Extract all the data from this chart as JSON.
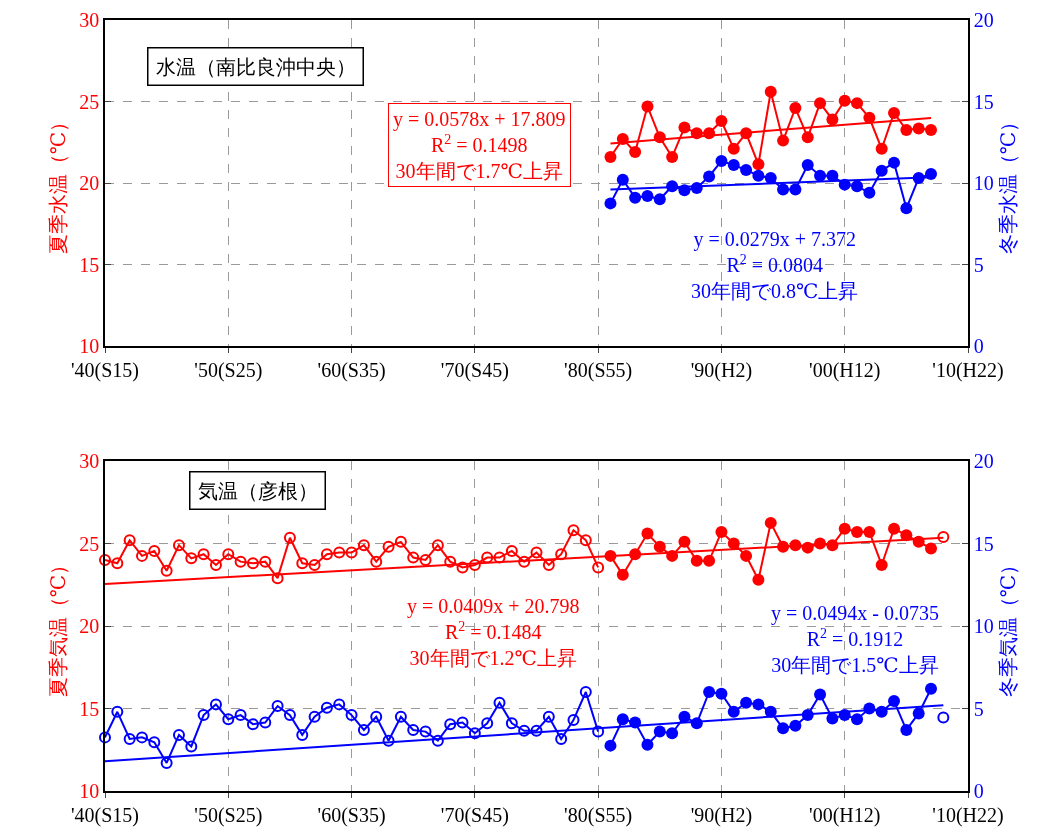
{
  "chart_data": [
    {
      "type": "line",
      "title": "水温（南比良沖中央）",
      "ylabel": "夏季水温（℃）",
      "y2label": "冬季水温（℃）",
      "categories": [
        "'40(S15)",
        null,
        null,
        null,
        null,
        null,
        null,
        null,
        null,
        null,
        "'50(S25)",
        null,
        null,
        null,
        null,
        null,
        null,
        null,
        null,
        null,
        "'60(S35)",
        null,
        null,
        null,
        null,
        null,
        null,
        null,
        null,
        null,
        "'70(S45)",
        null,
        null,
        null,
        null,
        null,
        null,
        null,
        null,
        null,
        "'80(S55)",
        null,
        null,
        null,
        null,
        null,
        null,
        null,
        null,
        null,
        "'90(H2)",
        null,
        null,
        null,
        null,
        null,
        null,
        null,
        null,
        null,
        "'00(H12)",
        null,
        null,
        null,
        null,
        null,
        null,
        null,
        null,
        null,
        "'10(H22)"
      ],
      "ylim": [
        10,
        30
      ],
      "yticks": [
        10,
        15,
        20,
        25,
        30
      ],
      "y2lim": [
        0,
        20
      ],
      "y2ticks": [
        0,
        5,
        10,
        15,
        20
      ],
      "grid": true,
      "series": [
        {
          "color": "#ff0000",
          "marker": "circle",
          "values": [
            null,
            null,
            null,
            null,
            null,
            null,
            null,
            null,
            null,
            null,
            null,
            null,
            null,
            null,
            null,
            null,
            null,
            null,
            null,
            null,
            null,
            null,
            null,
            null,
            null,
            null,
            null,
            null,
            null,
            null,
            null,
            null,
            null,
            null,
            null,
            null,
            null,
            null,
            null,
            null,
            null,
            21.6,
            22.7,
            21.9,
            24.7,
            22.8,
            21.6,
            23.4,
            23.05,
            23.05,
            23.8,
            22.1,
            23.05,
            21.15,
            25.6,
            22.6,
            24.6,
            22.8,
            24.9,
            23.9,
            25.05,
            24.9,
            24.0,
            22.1,
            24.3,
            23.25,
            23.35,
            23.25,
            null,
            null,
            null
          ]
        },
        {
          "color": "#0000ff",
          "axis": "y2",
          "marker": "circle",
          "values": [
            null,
            null,
            null,
            null,
            null,
            null,
            null,
            null,
            null,
            null,
            null,
            null,
            null,
            null,
            null,
            null,
            null,
            null,
            null,
            null,
            null,
            null,
            null,
            null,
            null,
            null,
            null,
            null,
            null,
            null,
            null,
            null,
            null,
            null,
            null,
            null,
            null,
            null,
            null,
            null,
            null,
            8.75,
            10.2,
            9.1,
            9.2,
            9.0,
            9.8,
            9.55,
            9.7,
            10.4,
            11.35,
            11.1,
            10.8,
            10.45,
            10.3,
            9.6,
            9.6,
            11.1,
            10.45,
            10.45,
            9.9,
            9.8,
            9.4,
            10.75,
            11.25,
            8.45,
            10.3,
            10.55,
            null,
            null,
            null
          ]
        },
        {
          "type": "line",
          "color": "#ff0000",
          "marker": "none",
          "values": [
            null,
            null,
            null,
            null,
            null,
            null,
            null,
            null,
            null,
            null,
            null,
            null,
            null,
            null,
            null,
            null,
            null,
            null,
            null,
            null,
            null,
            null,
            null,
            null,
            null,
            null,
            null,
            null,
            null,
            null,
            null,
            null,
            null,
            null,
            null,
            null,
            null,
            null,
            null,
            null,
            null,
            22.43,
            null,
            null,
            null,
            null,
            null,
            null,
            null,
            null,
            null,
            null,
            null,
            null,
            null,
            null,
            null,
            null,
            null,
            null,
            null,
            null,
            null,
            null,
            null,
            null,
            null,
            23.99,
            null,
            null,
            null
          ]
        },
        {
          "type": "line",
          "color": "#0000ff",
          "axis": "y2",
          "marker": "none",
          "values": [
            null,
            null,
            null,
            null,
            null,
            null,
            null,
            null,
            null,
            null,
            null,
            null,
            null,
            null,
            null,
            null,
            null,
            null,
            null,
            null,
            null,
            null,
            null,
            null,
            null,
            null,
            null,
            null,
            null,
            null,
            null,
            null,
            null,
            null,
            null,
            null,
            null,
            null,
            null,
            null,
            null,
            9.6,
            null,
            null,
            null,
            null,
            null,
            null,
            null,
            null,
            null,
            null,
            null,
            null,
            null,
            null,
            null,
            null,
            null,
            null,
            null,
            null,
            null,
            null,
            null,
            null,
            null,
            10.35,
            null,
            null,
            null
          ]
        }
      ],
      "annotations": [
        "y = 0.0578x + 17.809\nR$^{2}$ = 0.1498\n30年間で1.7℃上昇",
        "y = 0.0279x + 7.372\nR$^{2}$ = 0.0804\n30年間で0.8℃上昇"
      ]
    },
    {
      "type": "line",
      "title": "気温（彦根）",
      "ylabel": "夏季気温（℃）",
      "y2label": "冬季気温（℃）",
      "categories": [
        "'40(S15)",
        null,
        null,
        null,
        null,
        null,
        null,
        null,
        null,
        null,
        "'50(S25)",
        null,
        null,
        null,
        null,
        null,
        null,
        null,
        null,
        null,
        "'60(S35)",
        null,
        null,
        null,
        null,
        null,
        null,
        null,
        null,
        null,
        "'70(S45)",
        null,
        null,
        null,
        null,
        null,
        null,
        null,
        null,
        null,
        "'80(S55)",
        null,
        null,
        null,
        null,
        null,
        null,
        null,
        null,
        null,
        "'90(H2)",
        null,
        null,
        null,
        null,
        null,
        null,
        null,
        null,
        null,
        "'00(H12)",
        null,
        null,
        null,
        null,
        null,
        null,
        null,
        null,
        null,
        "'10(H22)"
      ],
      "ylim": [
        10,
        30
      ],
      "yticks": [
        10,
        15,
        20,
        25,
        30
      ],
      "y2lim": [
        0,
        20
      ],
      "y2ticks": [
        0,
        5,
        10,
        15,
        20
      ],
      "grid": true,
      "series": [
        {
          "color": "#ff0000",
          "marker": "circle-open",
          "values": [
            24.0,
            23.8,
            25.2,
            24.25,
            24.55,
            23.35,
            24.9,
            24.1,
            24.35,
            23.7,
            24.35,
            23.9,
            23.8,
            23.9,
            22.9,
            25.35,
            23.8,
            23.7,
            24.35,
            24.45,
            24.45,
            24.9,
            23.9,
            24.8,
            25.1,
            24.15,
            24.0,
            24.9,
            23.9,
            23.55,
            23.7,
            24.15,
            24.15,
            24.55,
            23.9,
            24.45,
            23.7,
            24.35,
            25.8,
            25.2,
            23.55,
            null,
            null,
            null,
            null,
            null,
            null,
            null,
            null,
            null,
            null,
            null,
            null,
            null,
            null,
            null,
            null,
            null,
            null,
            null,
            null,
            null,
            null,
            null,
            null,
            null,
            null,
            null,
            25.4,
            null,
            null
          ]
        },
        {
          "color": "#ff0000",
          "marker": "circle",
          "values": [
            null,
            null,
            null,
            null,
            null,
            null,
            null,
            null,
            null,
            null,
            null,
            null,
            null,
            null,
            null,
            null,
            null,
            null,
            null,
            null,
            null,
            null,
            null,
            null,
            null,
            null,
            null,
            null,
            null,
            null,
            null,
            null,
            null,
            null,
            null,
            null,
            null,
            null,
            null,
            null,
            null,
            24.25,
            23.1,
            24.35,
            25.6,
            24.8,
            24.25,
            25.1,
            23.95,
            23.95,
            25.7,
            25.0,
            24.25,
            22.8,
            26.25,
            24.8,
            24.9,
            24.75,
            25.0,
            24.9,
            25.9,
            25.7,
            25.7,
            23.7,
            25.9,
            25.5,
            25.1,
            24.7,
            null,
            null,
            null
          ]
        },
        {
          "color": "#0000ff",
          "axis": "y2",
          "marker": "circle-open",
          "values": [
            3.25,
            4.8,
            3.15,
            3.25,
            2.95,
            1.7,
            3.4,
            2.7,
            4.6,
            5.25,
            4.35,
            4.6,
            4.05,
            4.15,
            5.15,
            4.6,
            3.4,
            4.5,
            5.05,
            5.25,
            4.6,
            3.7,
            4.5,
            3.05,
            4.5,
            3.7,
            3.6,
            3.05,
            4.05,
            4.15,
            3.5,
            4.1,
            5.35,
            4.1,
            3.65,
            3.65,
            4.5,
            3.15,
            4.3,
            6.0,
            3.6,
            null,
            null,
            null,
            null,
            null,
            null,
            null,
            null,
            null,
            null,
            null,
            null,
            null,
            null,
            null,
            null,
            null,
            null,
            null,
            null,
            null,
            null,
            null,
            null,
            null,
            null,
            null,
            4.45,
            null,
            null
          ]
        },
        {
          "color": "#0000ff",
          "axis": "y2",
          "marker": "circle",
          "values": [
            null,
            null,
            null,
            null,
            null,
            null,
            null,
            null,
            null,
            null,
            null,
            null,
            null,
            null,
            null,
            null,
            null,
            null,
            null,
            null,
            null,
            null,
            null,
            null,
            null,
            null,
            null,
            null,
            null,
            null,
            null,
            null,
            null,
            null,
            null,
            null,
            null,
            null,
            null,
            null,
            null,
            2.75,
            4.35,
            4.15,
            2.8,
            3.6,
            3.5,
            4.5,
            4.1,
            6.0,
            5.9,
            4.8,
            5.35,
            5.25,
            4.8,
            3.8,
            3.95,
            4.6,
            5.85,
            4.4,
            4.6,
            4.35,
            5.0,
            4.8,
            5.45,
            3.7,
            4.7,
            6.2,
            null,
            null,
            null
          ]
        },
        {
          "type": "line",
          "color": "#ff0000",
          "marker": "none",
          "values": [
            22.55,
            null,
            null,
            null,
            null,
            null,
            null,
            null,
            null,
            null,
            null,
            null,
            null,
            null,
            null,
            null,
            null,
            null,
            null,
            null,
            null,
            null,
            null,
            null,
            null,
            null,
            null,
            null,
            null,
            null,
            null,
            null,
            null,
            null,
            null,
            null,
            null,
            null,
            null,
            null,
            null,
            null,
            null,
            null,
            null,
            null,
            null,
            null,
            null,
            null,
            null,
            null,
            null,
            null,
            null,
            null,
            null,
            null,
            null,
            null,
            null,
            null,
            null,
            null,
            null,
            null,
            null,
            null,
            25.35,
            null,
            null
          ]
        },
        {
          "type": "line",
          "color": "#0000ff",
          "axis": "y2",
          "marker": "none",
          "values": [
            1.8,
            null,
            null,
            null,
            null,
            null,
            null,
            null,
            null,
            null,
            null,
            null,
            null,
            null,
            null,
            null,
            null,
            null,
            null,
            null,
            null,
            null,
            null,
            null,
            null,
            null,
            null,
            null,
            null,
            null,
            null,
            null,
            null,
            null,
            null,
            null,
            null,
            null,
            null,
            null,
            null,
            null,
            null,
            null,
            null,
            null,
            null,
            null,
            null,
            null,
            null,
            null,
            null,
            null,
            null,
            null,
            null,
            null,
            null,
            null,
            null,
            null,
            null,
            null,
            null,
            null,
            null,
            null,
            5.2,
            null,
            null
          ]
        }
      ],
      "annotations": [
        "y = 0.0409x + 20.798\nR$^{2}$ = 0.1484\n30年間で1.2℃上昇",
        "y = 0.0494x - 0.0735\nR$^{2}$ = 0.1912\n30年間で1.5℃上昇"
      ]
    }
  ]
}
